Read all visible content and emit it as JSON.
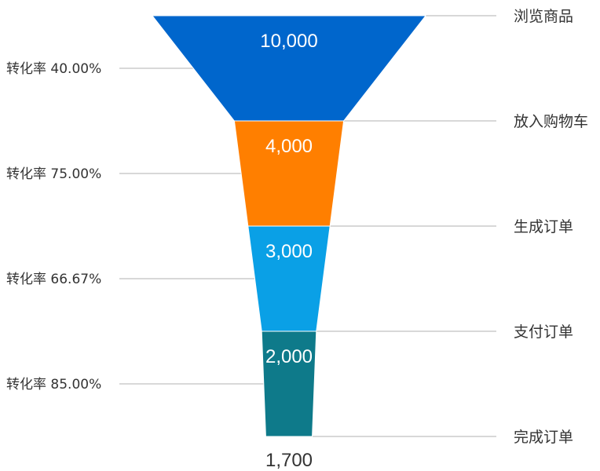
{
  "chart_data": {
    "type": "funnel",
    "stages": [
      {
        "name": "浏览商品",
        "value": 10000,
        "value_label": "10,000",
        "color": "#0066cc"
      },
      {
        "name": "放入购物车",
        "value": 4000,
        "value_label": "4,000",
        "color": "#ff7f00"
      },
      {
        "name": "生成订单",
        "value": 3000,
        "value_label": "3,000",
        "color": "#0aa0e6"
      },
      {
        "name": "支付订单",
        "value": 2000,
        "value_label": "2,000",
        "color": "#0e7a8a"
      },
      {
        "name": "完成订单",
        "value": 1700,
        "value_label": "1,700"
      }
    ],
    "conversion_rates": [
      "转化率 40.00%",
      "转化率 75.00%",
      "转化率 66.67%",
      "转化率 85.00%"
    ],
    "grid": false
  }
}
